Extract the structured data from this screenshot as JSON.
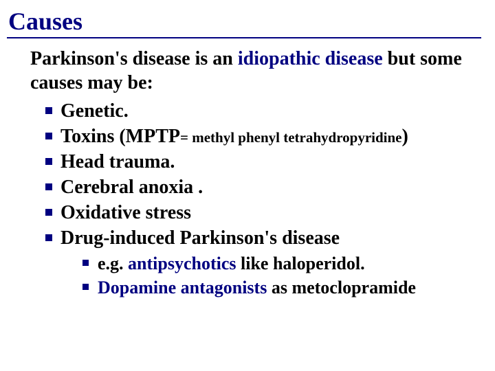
{
  "title": "Causes",
  "intro_pre": "Parkinson's disease is an ",
  "intro_mid": "idiopathic disease",
  "intro_post": " but some causes may be:",
  "items": {
    "i0": "Genetic.",
    "i1a": "Toxins (MPTP",
    "i1b": "= methyl phenyl tetrahydropyridine",
    "i1c": ")",
    "i2": "Head trauma.",
    "i3": "Cerebral anoxia .",
    "i4": "Oxidative stress",
    "i5": "Drug-induced Parkinson's disease"
  },
  "sub": {
    "s0a": "e.g. ",
    "s0b": "antipsychotics",
    "s0c": " like haloperidol.",
    "s1a": "Dopamine antagonists",
    "s1b": " as metoclopramide"
  },
  "colors": {
    "accent": "#000080",
    "text": "#000000",
    "background": "#ffffff"
  },
  "typography": {
    "title_size_pt": 36,
    "body_size_pt": 28,
    "sub_size_pt": 21,
    "family": "Times New Roman",
    "weight": "bold"
  }
}
